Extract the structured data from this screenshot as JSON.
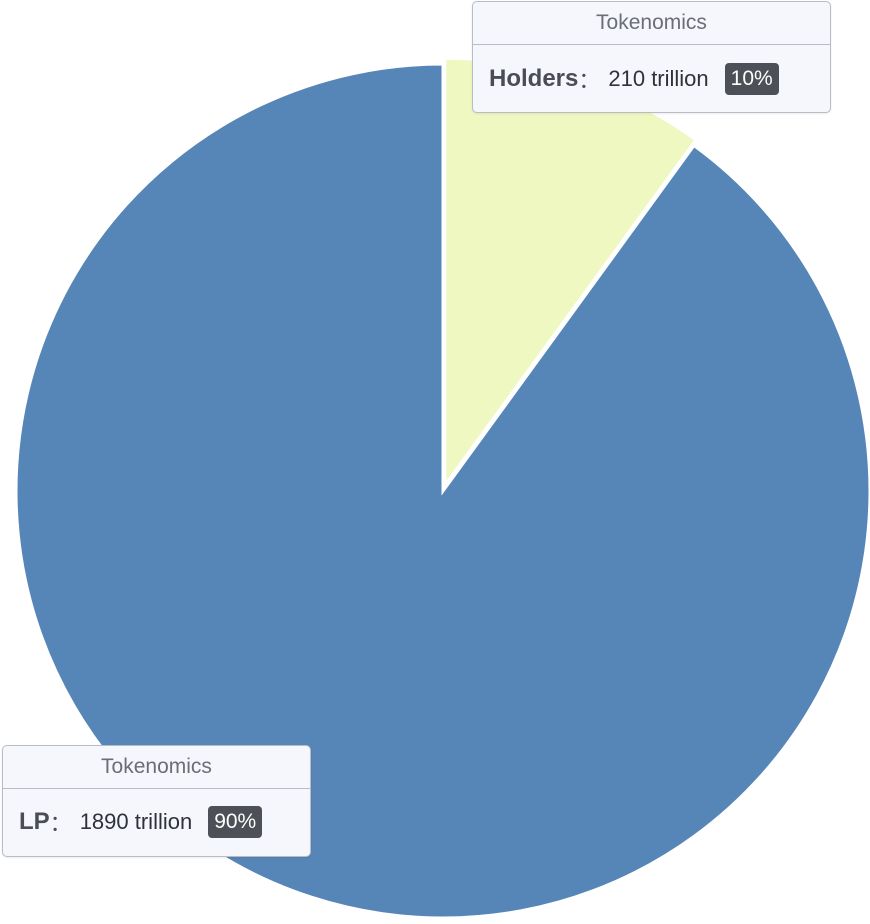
{
  "chart_data": {
    "type": "pie",
    "title": "",
    "series_name": "Tokenomics",
    "unit": "trillion",
    "slices": [
      {
        "name": "Holders",
        "value": 210,
        "percent": "10%",
        "color": "#eef8c0",
        "exploded": true
      },
      {
        "name": "LP",
        "value": 1890,
        "percent": "90%",
        "color": "#5686b7",
        "exploded": false
      }
    ]
  },
  "labels": {
    "holders": {
      "title": "Tokenomics",
      "name": "Holders",
      "separator": "：",
      "value_text": "210 trillion",
      "percent": "10%"
    },
    "lp": {
      "title": "Tokenomics",
      "name": "LP",
      "separator": "：",
      "value_text": "1890 trillion",
      "percent": "90%"
    }
  },
  "colors": {
    "callout_bg": "#f5f7fc",
    "callout_border": "#b9bcc4",
    "badge_bg": "#4e5058"
  }
}
